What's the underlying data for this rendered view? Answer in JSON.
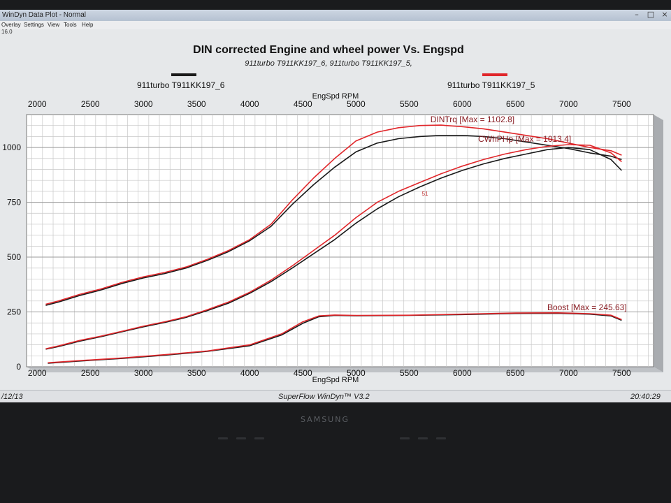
{
  "window": {
    "title": "WinDyn Data Plot - Normal",
    "menu": [
      "Overlay",
      "Settings",
      "View",
      "Tools",
      "Help"
    ],
    "toolbar_value": "16.0"
  },
  "legend": {
    "run1": "911turbo T911KK197_6",
    "run2": "911turbo T911KK197_5",
    "run1_color": "#1a1a1a",
    "run2_color": "#e0262a"
  },
  "status": {
    "date": "/12/13",
    "app": "SuperFlow WinDyn™ V3.2",
    "time": "20:40:29"
  },
  "bezel": {
    "brand": "SAMSUNG"
  },
  "chart_data": {
    "type": "line",
    "title": "DIN corrected Engine and wheel power Vs. Engspd",
    "subtitle": "911turbo T911KK197_6, 911turbo T911KK197_5,",
    "xlabel": "EngSpd RPM",
    "x_top_label": "EngSpd RPM",
    "xlim": [
      1900,
      7800
    ],
    "ylim": [
      0,
      1150
    ],
    "xticks": [
      2000,
      2500,
      3000,
      3500,
      4000,
      4500,
      5000,
      5500,
      6000,
      6500,
      7000,
      7500
    ],
    "yticks": [
      0,
      250,
      500,
      750,
      1000
    ],
    "grid": true,
    "legend_position": "top",
    "annotations": [
      {
        "text": "DINTrq [Max = 1102.8]",
        "x": 5700,
        "y": 1102
      },
      {
        "text": "CWhPHp [Max = 1013.4]",
        "x": 6150,
        "y": 1013
      },
      {
        "text": "Boost  [Max = 245.63]",
        "x": 6800,
        "y": 246
      },
      {
        "text": "51",
        "x": 5620,
        "y": 780
      }
    ],
    "series": [
      {
        "name": "911turbo T911KK197_5",
        "quantity": "DINTrq",
        "color": "#e0262a",
        "x": [
          2080,
          2200,
          2400,
          2600,
          2800,
          3000,
          3200,
          3400,
          3600,
          3800,
          4000,
          4200,
          4400,
          4600,
          4800,
          5000,
          5200,
          5400,
          5600,
          5800,
          6000,
          6200,
          6400,
          6600,
          6800,
          7000,
          7200,
          7400,
          7500
        ],
        "values": [
          285,
          300,
          330,
          355,
          385,
          410,
          430,
          455,
          490,
          530,
          580,
          650,
          760,
          860,
          950,
          1030,
          1070,
          1090,
          1100,
          1102,
          1095,
          1085,
          1070,
          1055,
          1040,
          1020,
          1000,
          985,
          965
        ]
      },
      {
        "name": "911turbo T911KK197_6",
        "quantity": "DINTrq",
        "color": "#1a1a1a",
        "x": [
          2080,
          2200,
          2400,
          2600,
          2800,
          3000,
          3200,
          3400,
          3600,
          3800,
          4000,
          4200,
          4400,
          4600,
          4800,
          5000,
          5200,
          5400,
          5600,
          5800,
          6000,
          6200,
          6400,
          6600,
          6800,
          7000,
          7200,
          7400,
          7500
        ],
        "values": [
          280,
          295,
          325,
          350,
          380,
          405,
          425,
          450,
          485,
          525,
          575,
          640,
          740,
          830,
          910,
          980,
          1020,
          1040,
          1050,
          1055,
          1055,
          1050,
          1040,
          1025,
          1010,
          995,
          975,
          960,
          945
        ]
      },
      {
        "name": "911turbo T911KK197_5",
        "quantity": "CWhPHp",
        "color": "#e0262a",
        "x": [
          2080,
          2200,
          2400,
          2600,
          2800,
          3000,
          3200,
          3400,
          3600,
          3800,
          4000,
          4200,
          4400,
          4600,
          4800,
          5000,
          5200,
          5400,
          5600,
          5800,
          6000,
          6200,
          6400,
          6600,
          6800,
          7000,
          7200,
          7400,
          7500
        ],
        "values": [
          82,
          95,
          120,
          140,
          162,
          185,
          205,
          228,
          260,
          295,
          340,
          395,
          460,
          530,
          600,
          680,
          750,
          800,
          840,
          880,
          915,
          945,
          970,
          990,
          1005,
          1013,
          1010,
          975,
          935
        ]
      },
      {
        "name": "911turbo T911KK197_6",
        "quantity": "CWhPHp",
        "color": "#1a1a1a",
        "x": [
          2080,
          2200,
          2400,
          2600,
          2800,
          3000,
          3200,
          3400,
          3600,
          3800,
          4000,
          4200,
          4400,
          4600,
          4800,
          5000,
          5200,
          5400,
          5600,
          5800,
          6000,
          6200,
          6400,
          6600,
          6800,
          7000,
          7200,
          7400,
          7500
        ],
        "values": [
          80,
          92,
          117,
          137,
          160,
          182,
          202,
          225,
          256,
          290,
          335,
          388,
          450,
          515,
          580,
          655,
          720,
          775,
          820,
          860,
          895,
          925,
          950,
          970,
          990,
          1000,
          990,
          945,
          895
        ]
      },
      {
        "name": "911turbo T911KK197_5",
        "quantity": "Boost",
        "color": "#e0262a",
        "x": [
          2100,
          2400,
          2800,
          3200,
          3600,
          4000,
          4300,
          4500,
          4650,
          4800,
          5000,
          5500,
          6000,
          6500,
          6900,
          7200,
          7400,
          7500
        ],
        "values": [
          18,
          28,
          40,
          55,
          72,
          100,
          150,
          205,
          232,
          236,
          234,
          235,
          240,
          245,
          246,
          242,
          235,
          215
        ]
      },
      {
        "name": "911turbo T911KK197_6",
        "quantity": "Boost",
        "color": "#1a1a1a",
        "x": [
          2100,
          2400,
          2800,
          3200,
          3600,
          4000,
          4300,
          4500,
          4650,
          4800,
          5000,
          5500,
          6000,
          6500,
          6900,
          7200,
          7400,
          7500
        ],
        "values": [
          16,
          26,
          38,
          53,
          70,
          96,
          145,
          198,
          228,
          234,
          233,
          234,
          238,
          243,
          244,
          240,
          232,
          212
        ]
      }
    ]
  }
}
